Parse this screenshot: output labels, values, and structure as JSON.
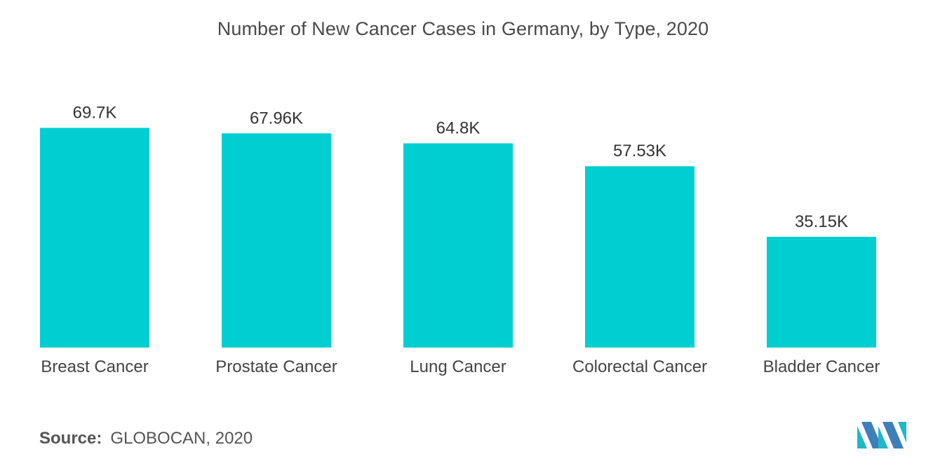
{
  "colors": {
    "bar": "#00CED1",
    "logo_teal": "#1FB8C9",
    "logo_blue": "#3E7FB7"
  },
  "chart_data": {
    "type": "bar",
    "title": "Number of New Cancer Cases in Germany, by Type, 2020",
    "categories": [
      "Breast Cancer",
      "Prostate Cancer",
      "Lung Cancer",
      "Colorectal Cancer",
      "Bladder Cancer"
    ],
    "values": [
      69.7,
      67.96,
      64.8,
      57.53,
      35.15
    ],
    "value_labels": [
      "69.7K",
      "67.96K",
      "64.8K",
      "57.53K",
      "35.15K"
    ],
    "unit": "thousand",
    "xlabel": "",
    "ylabel": "",
    "ylim": [
      0,
      70
    ],
    "grid": false,
    "legend": "none"
  },
  "source": {
    "label": "Source:",
    "text": "GLOBOCAN, 2020"
  },
  "logo": {
    "icon": "mordor-intelligence-logo-icon"
  }
}
